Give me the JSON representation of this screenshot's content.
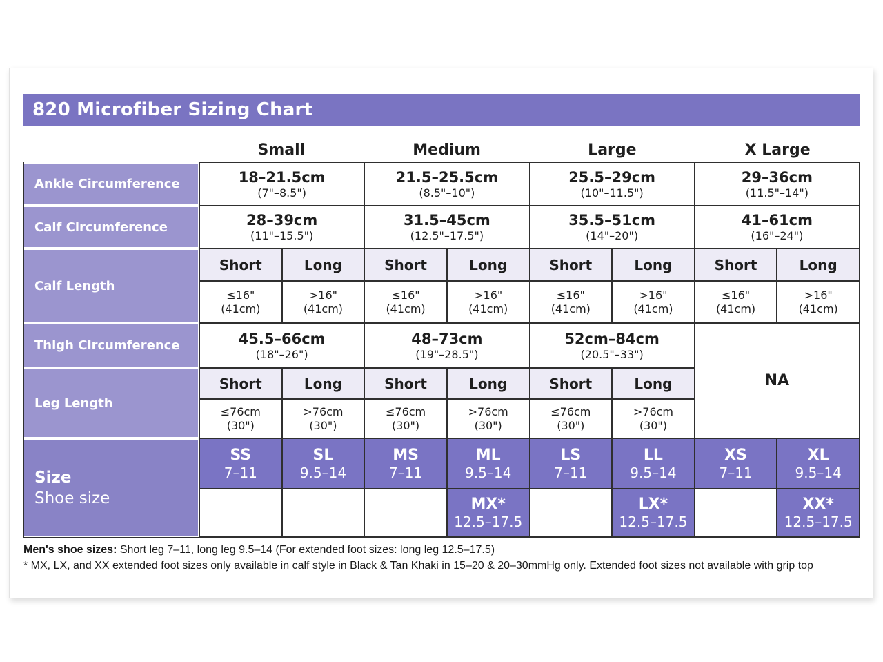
{
  "title": "820 Microfiber Sizing Chart",
  "columns": [
    "Small",
    "Medium",
    "Large",
    "X Large"
  ],
  "rows": {
    "ankle": {
      "label": "Ankle Circumference",
      "cells": [
        {
          "cm": "18–21.5cm",
          "in": "(7\"–8.5\")"
        },
        {
          "cm": "21.5–25.5cm",
          "in": "(8.5\"–10\")"
        },
        {
          "cm": "25.5–29cm",
          "in": "(10\"–11.5\")"
        },
        {
          "cm": "29–36cm",
          "in": "(11.5\"–14\")"
        }
      ]
    },
    "calf_circumference": {
      "label": "Calf Circumference",
      "cells": [
        {
          "cm": "28–39cm",
          "in": "(11\"–15.5\")"
        },
        {
          "cm": "31.5–45cm",
          "in": "(12.5\"–17.5\")"
        },
        {
          "cm": "35.5–51cm",
          "in": "(14\"–20\")"
        },
        {
          "cm": "41–61cm",
          "in": "(16\"–24\")"
        }
      ]
    },
    "calf_length": {
      "label": "Calf Length",
      "short_header": "Short",
      "long_header": "Long",
      "short_value": "≤16\"",
      "long_value": ">16\"",
      "sub": "(41cm)"
    },
    "thigh": {
      "label": "Thigh Circumference",
      "cells": [
        {
          "cm": "45.5–66cm",
          "in": "(18\"–26\")"
        },
        {
          "cm": "48–73cm",
          "in": "(19\"–28.5\")"
        },
        {
          "cm": "52cm–84cm",
          "in": "(20.5\"–33\")"
        }
      ],
      "xlarge_na": "NA"
    },
    "leg_length": {
      "label": "Leg Length",
      "short_header": "Short",
      "long_header": "Long",
      "short_value": "≤76cm",
      "long_value": ">76cm",
      "sub": "(30\")"
    },
    "size": {
      "label_line1": "Size",
      "label_line2": "Shoe size",
      "cells": [
        {
          "code": "SS",
          "range": "7–11"
        },
        {
          "code": "SL",
          "range": "9.5–14"
        },
        {
          "code": "MS",
          "range": "7–11"
        },
        {
          "code": "ML",
          "range": "9.5–14"
        },
        {
          "code": "LS",
          "range": "7–11"
        },
        {
          "code": "LL",
          "range": "9.5–14"
        },
        {
          "code": "XS",
          "range": "7–11"
        },
        {
          "code": "XL",
          "range": "9.5–14"
        }
      ],
      "extended": [
        {
          "code": "MX*",
          "range": "12.5–17.5"
        },
        {
          "code": "LX*",
          "range": "12.5–17.5"
        },
        {
          "code": "XX*",
          "range": "12.5–17.5"
        }
      ]
    }
  },
  "footnotes": {
    "line1_bold": "Men's shoe sizes:",
    "line1_rest": " Short leg 7–11, long leg 9.5–14 (For extended foot sizes: long leg 12.5–17.5)",
    "line2": "* MX, LX, and XX extended foot sizes only available in calf style in Black & Tan Khaki in 15–20 & 20–30mmHg only. Extended foot sizes not available with grip top"
  },
  "colors": {
    "title_bar": "#7a74c2",
    "row_label": "#9b95cf",
    "size_label": "#8983c6",
    "size_cell": "#7a74c4",
    "subheader_bg": "#edebf6",
    "border": "#2f2f2f"
  },
  "chart_data": {
    "type": "table",
    "title": "820 Microfiber Sizing Chart",
    "columns": [
      "",
      "Small",
      "Medium",
      "Large",
      "X Large"
    ],
    "rows": [
      [
        "Ankle Circumference",
        "18–21.5cm (7\"–8.5\")",
        "21.5–25.5cm (8.5\"–10\")",
        "25.5–29cm (10\"–11.5\")",
        "29–36cm (11.5\"–14\")"
      ],
      [
        "Calf Circumference",
        "28–39cm (11\"–15.5\")",
        "31.5–45cm (12.5\"–17.5\")",
        "35.5–51cm (14\"–20\")",
        "41–61cm (16\"–24\")"
      ],
      [
        "Calf Length – Short",
        "≤16\" (41cm)",
        "≤16\" (41cm)",
        "≤16\" (41cm)",
        "≤16\" (41cm)"
      ],
      [
        "Calf Length – Long",
        ">16\" (41cm)",
        ">16\" (41cm)",
        ">16\" (41cm)",
        ">16\" (41cm)"
      ],
      [
        "Thigh Circumference",
        "45.5–66cm (18\"–26\")",
        "48–73cm (19\"–28.5\")",
        "52cm–84cm (20.5\"–33\")",
        "NA"
      ],
      [
        "Leg Length – Short",
        "≤76cm (30\")",
        "≤76cm (30\")",
        "≤76cm (30\")",
        "NA"
      ],
      [
        "Leg Length – Long",
        ">76cm (30\")",
        ">76cm (30\")",
        ">76cm (30\")",
        "NA"
      ],
      [
        "Size / Shoe size – Short",
        "SS 7–11",
        "MS 7–11",
        "LS 7–11",
        "XS 7–11"
      ],
      [
        "Size / Shoe size – Long",
        "SL 9.5–14",
        "ML 9.5–14",
        "LL 9.5–14",
        "XL 9.5–14"
      ],
      [
        "Extended foot size – Long",
        "",
        "MX* 12.5–17.5",
        "LX* 12.5–17.5",
        "XX* 12.5–17.5"
      ]
    ]
  }
}
